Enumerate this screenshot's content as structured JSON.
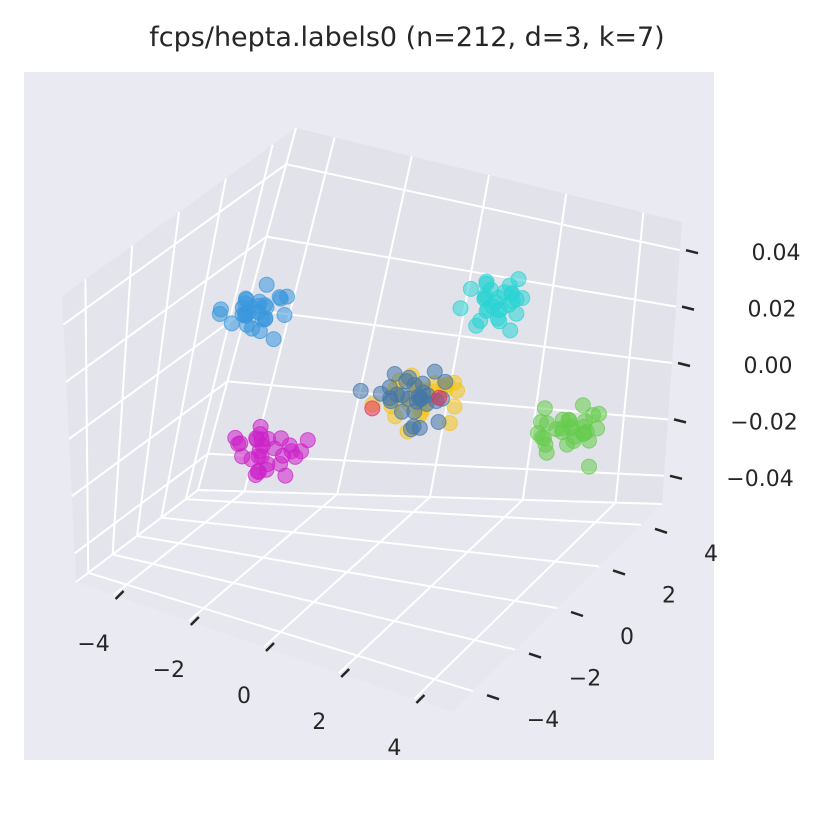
{
  "chart_data": {
    "type": "scatter",
    "projection": "3d",
    "title": "fcps/hepta.labels0 (n=212, d=3, k=7)",
    "x_ticks": [
      "−4",
      "−2",
      "0",
      "2",
      "4"
    ],
    "y_ticks": [
      "−4",
      "−2",
      "0",
      "2",
      "4"
    ],
    "z_ticks": [
      "0.04",
      "0.02",
      "0.00",
      "−0.02",
      "−0.04"
    ],
    "xlim": [
      -4,
      4
    ],
    "ylim": [
      -4,
      4
    ],
    "zlim": [
      -0.05,
      0.05
    ],
    "grid": true,
    "clusters": [
      {
        "color": "#f5c518",
        "center": [
          0.5,
          0.5,
          0.0
        ]
      },
      {
        "color": "#4477aa",
        "center": [
          0.4,
          0.5,
          0.0
        ]
      },
      {
        "color": "#e6335d",
        "center": [
          0.3,
          0.5,
          0.0
        ]
      },
      {
        "color": "#2ad4d4",
        "center": [
          0.2,
          4.0,
          0.0
        ]
      },
      {
        "color": "#66cc4d",
        "center": [
          3.5,
          1.0,
          0.0
        ]
      },
      {
        "color": "#cc22c8",
        "center": [
          -1.0,
          -2.5,
          0.0
        ]
      },
      {
        "color": "#3a98dd",
        "center": [
          -3.5,
          1.5,
          0.0
        ]
      }
    ]
  }
}
